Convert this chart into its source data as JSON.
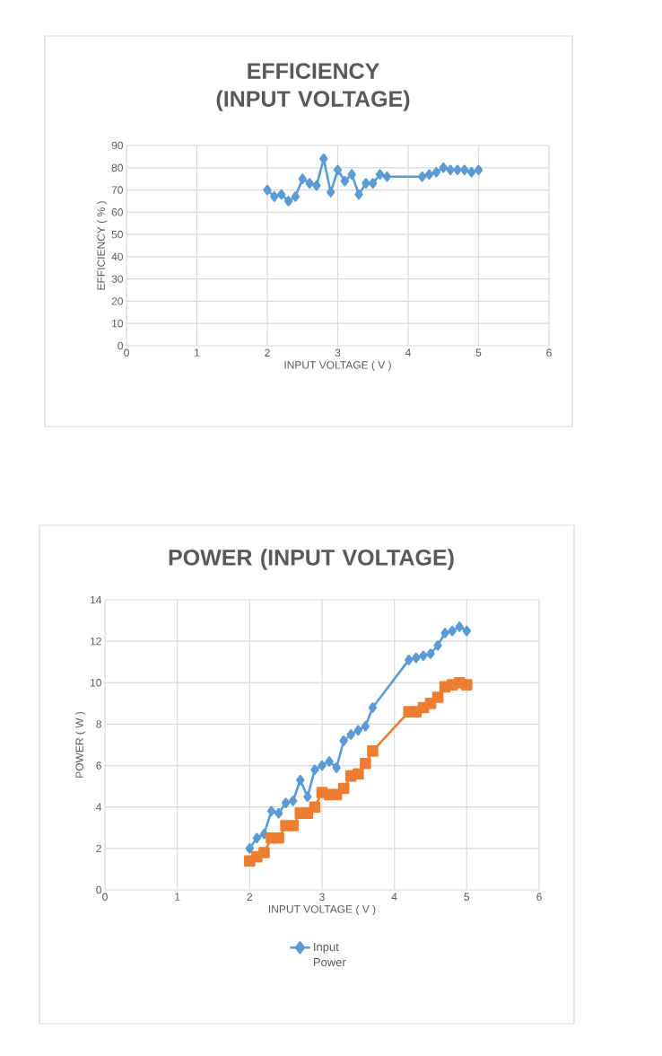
{
  "chart_data": [
    {
      "type": "line",
      "title": "EFFICIENCY (INPUT VOLTAGE)",
      "xlabel": "INPUT VOLTAGE ( V )",
      "ylabel": "EFFICIENCY ( % )",
      "xlim": [
        0,
        6
      ],
      "ylim": [
        0,
        90
      ],
      "xticks": [
        0,
        1,
        2,
        3,
        4,
        5,
        6
      ],
      "yticks": [
        0,
        10,
        20,
        30,
        40,
        50,
        60,
        70,
        80,
        90
      ],
      "grid": true,
      "marker": "diamond",
      "series": [
        {
          "color": "#5b9bd5",
          "x": [
            2.0,
            2.1,
            2.2,
            2.3,
            2.4,
            2.5,
            2.6,
            2.7,
            2.8,
            2.9,
            3.0,
            3.1,
            3.2,
            3.3,
            3.4,
            3.5,
            3.6,
            3.7,
            4.2,
            4.3,
            4.4,
            4.5,
            4.6,
            4.7,
            4.8,
            4.9,
            5.0
          ],
          "values": [
            70,
            67,
            68,
            65,
            67,
            75,
            73,
            72,
            84,
            69,
            79,
            74,
            77,
            68,
            73,
            73,
            77,
            76,
            76,
            77,
            78,
            80,
            79,
            79,
            79,
            78,
            79
          ]
        }
      ]
    },
    {
      "type": "line",
      "title": "POWER (INPUT VOLTAGE)",
      "xlabel": "INPUT VOLTAGE ( V )",
      "ylabel": "POWER ( W )",
      "xlim": [
        0,
        6
      ],
      "ylim": [
        0,
        14
      ],
      "xticks": [
        0,
        1,
        2,
        3,
        4,
        5,
        6
      ],
      "yticks": [
        0,
        2,
        4,
        6,
        8,
        10,
        12,
        14
      ],
      "grid": true,
      "marker": "diamond",
      "legend": "bottom",
      "series": [
        {
          "name": "Input Power",
          "color": "#5b9bd5",
          "x": [
            2.0,
            2.1,
            2.2,
            2.3,
            2.4,
            2.5,
            2.6,
            2.7,
            2.8,
            2.9,
            3.0,
            3.1,
            3.2,
            3.3,
            3.4,
            3.5,
            3.6,
            3.7,
            4.2,
            4.3,
            4.4,
            4.5,
            4.6,
            4.7,
            4.8,
            4.9,
            5.0
          ],
          "values": [
            2.0,
            2.5,
            2.7,
            3.8,
            3.7,
            4.2,
            4.3,
            5.3,
            4.5,
            5.8,
            6.0,
            6.2,
            5.9,
            7.2,
            7.5,
            7.7,
            7.9,
            8.8,
            11.1,
            11.2,
            11.3,
            11.4,
            11.8,
            12.4,
            12.5,
            12.7,
            12.5
          ]
        },
        {
          "color": "#ed7d31",
          "marker": "square",
          "x": [
            2.0,
            2.1,
            2.2,
            2.3,
            2.4,
            2.5,
            2.6,
            2.7,
            2.8,
            2.9,
            3.0,
            3.1,
            3.2,
            3.3,
            3.4,
            3.5,
            3.6,
            3.7,
            4.2,
            4.3,
            4.4,
            4.5,
            4.6,
            4.7,
            4.8,
            4.9,
            5.0
          ],
          "values": [
            1.4,
            1.6,
            1.8,
            2.5,
            2.5,
            3.1,
            3.1,
            3.7,
            3.7,
            4.0,
            4.7,
            4.6,
            4.6,
            4.9,
            5.5,
            5.6,
            6.1,
            6.7,
            8.6,
            8.6,
            8.8,
            9.0,
            9.3,
            9.8,
            9.9,
            10.0,
            9.9
          ]
        }
      ]
    }
  ]
}
